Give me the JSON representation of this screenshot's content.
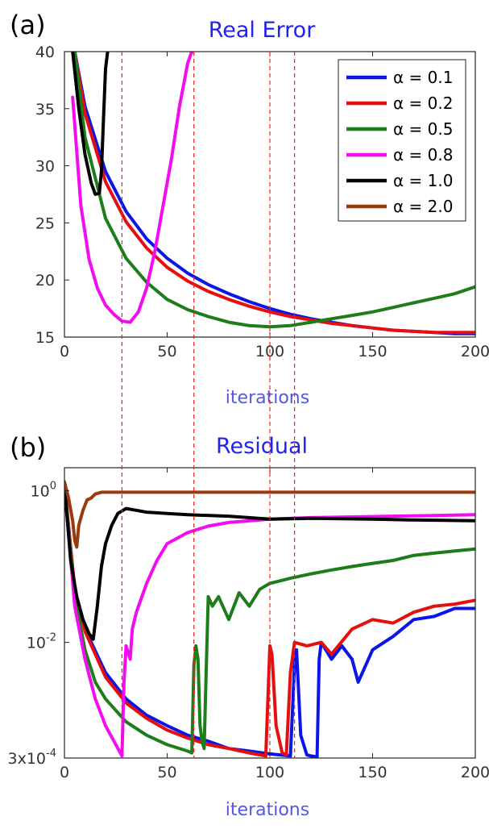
{
  "panel_labels": [
    "(a)",
    "(b)"
  ],
  "legend": {
    "alpha_symbol": "α",
    "entries": [
      "α = 0.1",
      "α = 0.2",
      "α = 0.5",
      "α = 0.8",
      "α = 1.0",
      "α = 2.0"
    ],
    "colors": [
      "#0a16e6",
      "#e60f0f",
      "#1d7d1a",
      "#f30cf0",
      "#000000",
      "#9a3a0b"
    ]
  },
  "vlines": [
    28,
    63,
    100,
    112
  ],
  "chart_data": [
    {
      "type": "line",
      "title": "Real Error",
      "xlabel": "iterations",
      "ylabel": "",
      "xlim": [
        0,
        200
      ],
      "ylim": [
        15,
        40
      ],
      "yscale": "linear",
      "xticks": [
        "0",
        "50",
        "100",
        "150",
        "200"
      ],
      "yticks": [
        "15",
        "20",
        "25",
        "30",
        "35",
        "40"
      ],
      "legend_position": "top-right",
      "series": [
        {
          "name": "α = 0.1",
          "color": "#0a16e6",
          "x": [
            5,
            10,
            20,
            30,
            40,
            50,
            60,
            70,
            80,
            90,
            100,
            110,
            120,
            130,
            140,
            150,
            160,
            170,
            180,
            190,
            200
          ],
          "y": [
            40,
            35.2,
            29.5,
            26.0,
            23.6,
            21.9,
            20.6,
            19.6,
            18.8,
            18.1,
            17.5,
            17.0,
            16.6,
            16.3,
            16.0,
            15.8,
            15.6,
            15.5,
            15.4,
            15.3,
            15.3
          ]
        },
        {
          "name": "α = 0.2",
          "color": "#e60f0f",
          "x": [
            5,
            10,
            20,
            30,
            40,
            50,
            60,
            70,
            80,
            90,
            100,
            110,
            120,
            130,
            140,
            150,
            160,
            170,
            180,
            190,
            200
          ],
          "y": [
            40,
            34.6,
            28.6,
            25.1,
            22.8,
            21.1,
            19.9,
            19.0,
            18.3,
            17.7,
            17.2,
            16.8,
            16.5,
            16.2,
            16.0,
            15.8,
            15.6,
            15.5,
            15.4,
            15.4,
            15.4
          ]
        },
        {
          "name": "α = 0.5",
          "color": "#1d7d1a",
          "x": [
            5,
            10,
            20,
            30,
            40,
            50,
            60,
            70,
            80,
            90,
            100,
            110,
            120,
            130,
            140,
            150,
            160,
            170,
            180,
            190,
            200
          ],
          "y": [
            40,
            32.5,
            25.4,
            21.9,
            19.8,
            18.3,
            17.4,
            16.8,
            16.3,
            16.0,
            15.9,
            16.0,
            16.3,
            16.6,
            16.9,
            17.2,
            17.6,
            18.0,
            18.4,
            18.8,
            19.4
          ]
        },
        {
          "name": "α = 0.8",
          "color": "#f30cf0",
          "x": [
            4,
            8,
            12,
            16,
            20,
            24,
            28,
            32,
            36,
            40,
            44,
            48,
            52,
            56,
            60,
            62
          ],
          "y": [
            36,
            26.5,
            21.8,
            19.3,
            17.8,
            17.0,
            16.4,
            16.3,
            17.2,
            19.3,
            22.5,
            26.5,
            30.5,
            35.2,
            39.0,
            40
          ]
        },
        {
          "name": "α = 1.0",
          "color": "#000000",
          "x": [
            4,
            7,
            10,
            13,
            15,
            17,
            18,
            19,
            20,
            21
          ],
          "y": [
            40,
            35.0,
            31.0,
            28.5,
            27.5,
            27.6,
            29.5,
            34.0,
            38.5,
            40
          ]
        },
        {
          "name": "α = 2.0",
          "color": "#9a3a0b",
          "x": [],
          "y": []
        }
      ]
    },
    {
      "type": "line",
      "title": "Residual",
      "xlabel": "iterations",
      "ylabel": "",
      "xlim": [
        0,
        200
      ],
      "ylim": [
        0.0003,
        2
      ],
      "yscale": "log",
      "xticks": [
        "0",
        "50",
        "100",
        "150",
        "200"
      ],
      "yticks": [
        {
          "value": 1,
          "base": "10",
          "exp": "0"
        },
        {
          "value": 0.01,
          "base": "10",
          "exp": "-2"
        },
        {
          "value": 0.0003,
          "base": "3x10",
          "exp": "-4"
        }
      ],
      "series": [
        {
          "name": "α = 0.1",
          "color": "#0a16e6",
          "x": [
            0,
            5,
            10,
            20,
            30,
            40,
            50,
            60,
            70,
            80,
            90,
            100,
            110,
            112,
            113,
            115,
            118,
            120,
            123,
            124,
            125,
            130,
            135,
            140,
            143,
            150,
            160,
            170,
            180,
            190,
            200
          ],
          "y": [
            1.2,
            0.05,
            0.015,
            0.004,
            0.0018,
            0.0011,
            0.0008,
            0.0006,
            0.0005,
            0.0004,
            0.00037,
            0.00034,
            0.00032,
            0.005,
            0.008,
            0.0006,
            0.00033,
            0.00032,
            0.00031,
            0.006,
            0.01,
            0.006,
            0.009,
            0.006,
            0.003,
            0.008,
            0.012,
            0.02,
            0.022,
            0.028,
            0.028
          ]
        },
        {
          "name": "α = 0.2",
          "color": "#e60f0f",
          "x": [
            0,
            5,
            10,
            20,
            30,
            40,
            50,
            60,
            70,
            80,
            90,
            98,
            100,
            101,
            103,
            106,
            108,
            110,
            112,
            118,
            125,
            130,
            140,
            150,
            160,
            170,
            180,
            190,
            200
          ],
          "y": [
            1.2,
            0.05,
            0.014,
            0.0035,
            0.0016,
            0.001,
            0.0007,
            0.00055,
            0.00045,
            0.0004,
            0.00035,
            0.00032,
            0.009,
            0.007,
            0.0008,
            0.00035,
            0.00033,
            0.004,
            0.01,
            0.009,
            0.01,
            0.007,
            0.015,
            0.02,
            0.018,
            0.025,
            0.03,
            0.032,
            0.036
          ]
        },
        {
          "name": "α = 0.5",
          "color": "#1d7d1a",
          "x": [
            0,
            5,
            10,
            15,
            20,
            30,
            40,
            50,
            60,
            62,
            63,
            64,
            65,
            66,
            67,
            68,
            69,
            70,
            72,
            75,
            80,
            85,
            90,
            95,
            100,
            110,
            120,
            130,
            140,
            150,
            160,
            170,
            180,
            190,
            200
          ],
          "y": [
            1.2,
            0.04,
            0.008,
            0.003,
            0.0018,
            0.0009,
            0.0006,
            0.00045,
            0.00037,
            0.00035,
            0.005,
            0.009,
            0.006,
            0.0008,
            0.0005,
            0.0004,
            0.004,
            0.04,
            0.03,
            0.04,
            0.02,
            0.045,
            0.03,
            0.05,
            0.06,
            0.07,
            0.08,
            0.09,
            0.1,
            0.11,
            0.12,
            0.14,
            0.15,
            0.16,
            0.17
          ]
        },
        {
          "name": "α = 0.8",
          "color": "#f30cf0",
          "x": [
            0,
            5,
            10,
            15,
            20,
            25,
            28,
            29,
            30,
            32,
            33,
            35,
            40,
            45,
            50,
            60,
            70,
            80,
            100,
            120,
            140,
            160,
            180,
            200
          ],
          "y": [
            1.2,
            0.03,
            0.006,
            0.0018,
            0.0008,
            0.00045,
            0.00032,
            0.003,
            0.009,
            0.006,
            0.015,
            0.025,
            0.06,
            0.12,
            0.2,
            0.28,
            0.34,
            0.38,
            0.42,
            0.44,
            0.45,
            0.46,
            0.47,
            0.48
          ]
        },
        {
          "name": "α = 1.0",
          "color": "#000000",
          "x": [
            0,
            3,
            6,
            9,
            12,
            14,
            16,
            18,
            20,
            23,
            26,
            30,
            35,
            40,
            50,
            60,
            80,
            100,
            120,
            150,
            170,
            200
          ],
          "y": [
            1.2,
            0.12,
            0.04,
            0.02,
            0.013,
            0.011,
            0.03,
            0.1,
            0.2,
            0.35,
            0.5,
            0.58,
            0.55,
            0.52,
            0.5,
            0.48,
            0.46,
            0.42,
            0.43,
            0.42,
            0.41,
            0.4
          ]
        },
        {
          "name": "α = 2.0",
          "color": "#9a3a0b",
          "x": [
            0,
            2,
            4,
            5,
            6,
            7,
            9,
            11,
            13,
            15,
            18,
            20,
            30,
            50,
            100,
            150,
            200
          ],
          "y": [
            1.3,
            0.8,
            0.4,
            0.22,
            0.18,
            0.35,
            0.55,
            0.75,
            0.8,
            0.9,
            0.95,
            0.95,
            0.95,
            0.95,
            0.95,
            0.95,
            0.95
          ]
        }
      ]
    }
  ]
}
